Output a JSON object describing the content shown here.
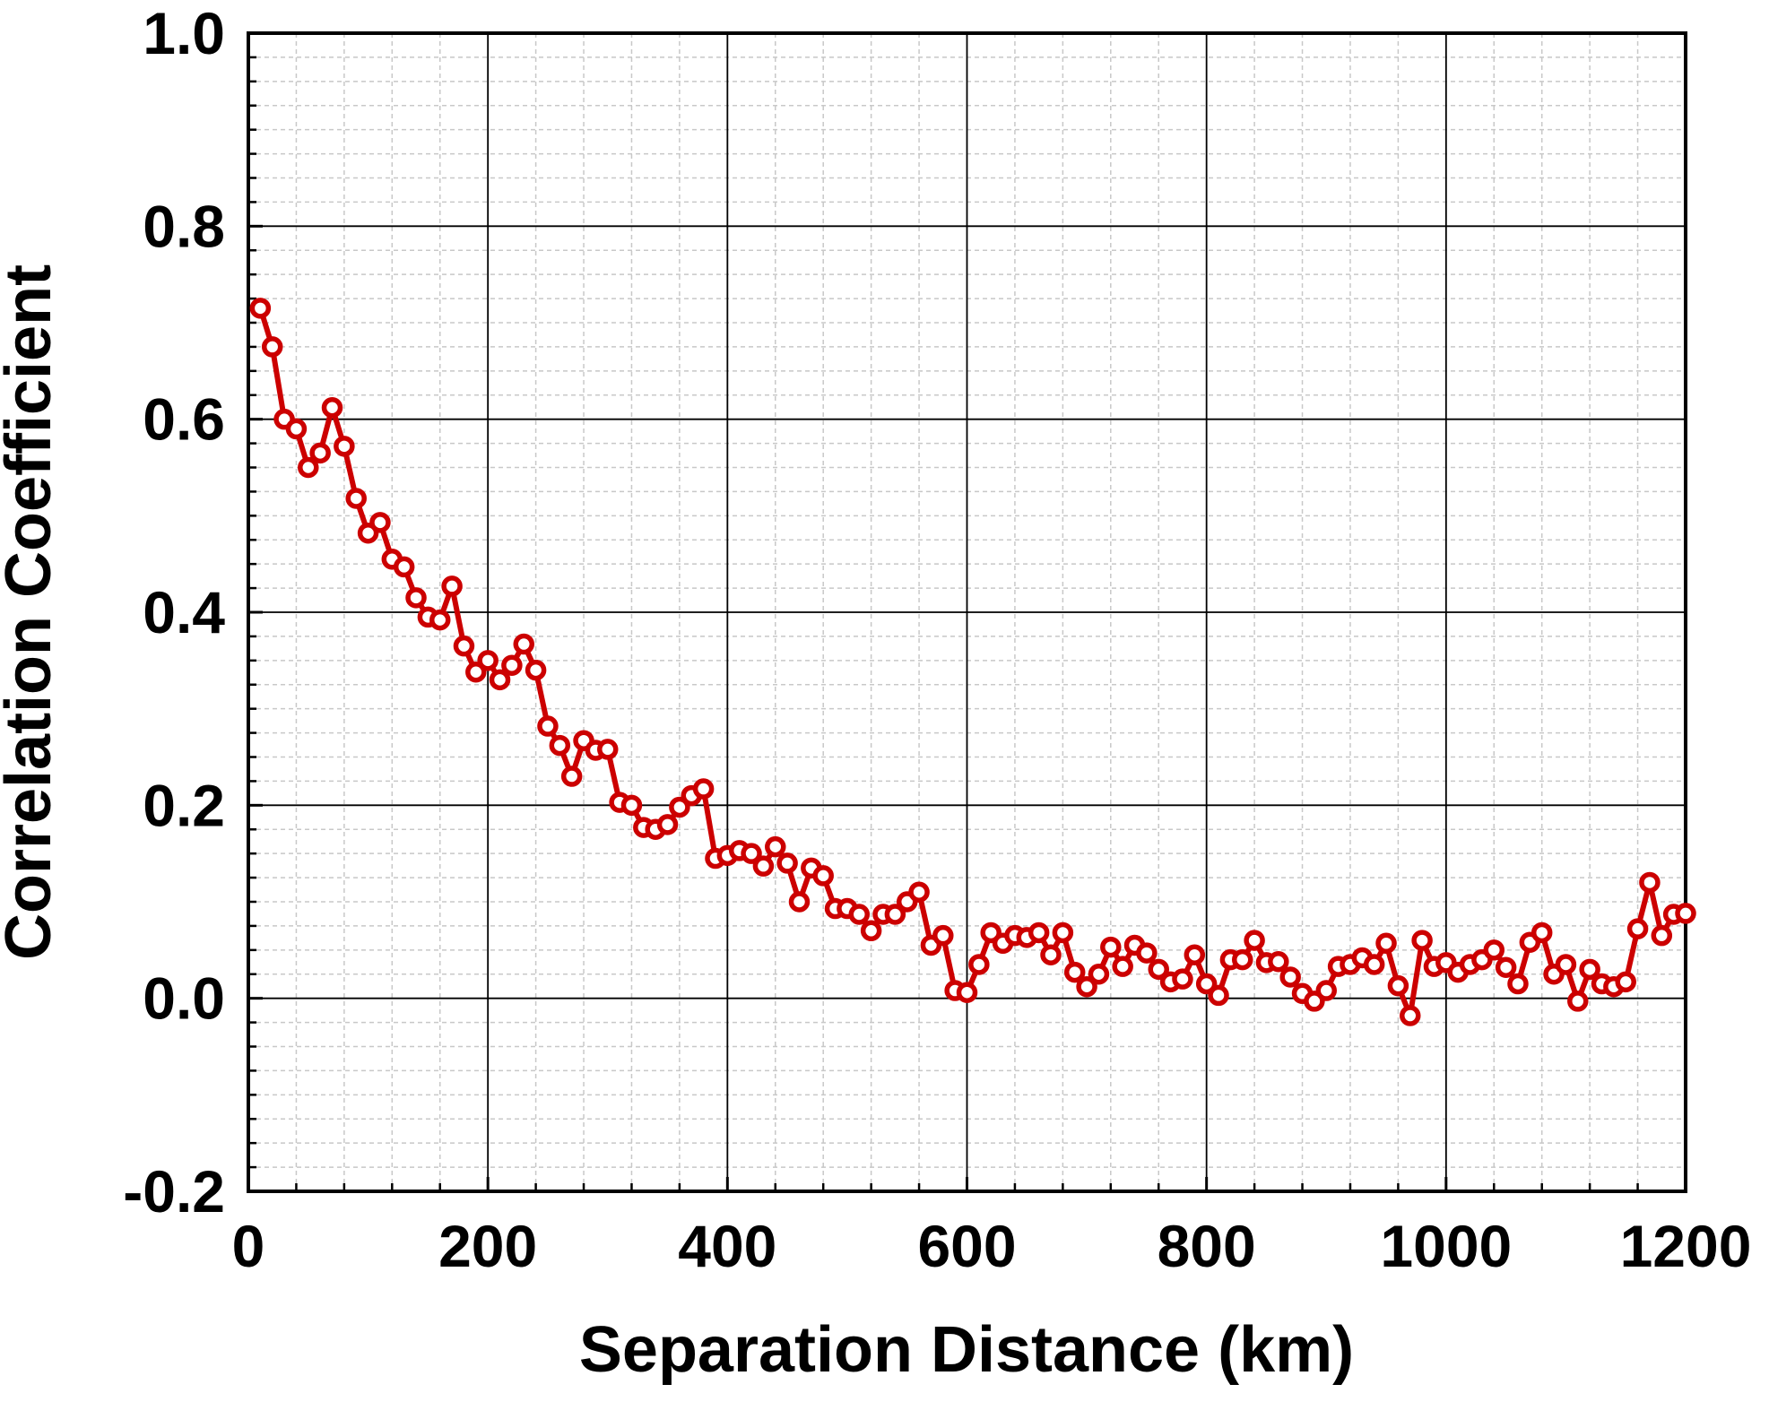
{
  "chart_data": {
    "type": "line",
    "xlabel": "Separation Distance (km)",
    "ylabel": "Correlation Coefficient",
    "xlim": [
      0,
      1200
    ],
    "ylim": [
      -0.2,
      1.0
    ],
    "x_ticks": [
      "0",
      "200",
      "400",
      "600",
      "800",
      "1000",
      "1200"
    ],
    "y_ticks": [
      "-0.2",
      "0.0",
      "0.2",
      "0.4",
      "0.6",
      "0.8",
      "1.0"
    ],
    "grid": true,
    "minor_grid": true,
    "legend": "none",
    "colors": {
      "series": "#cc0000",
      "major_grid": "#000000",
      "minor_grid": "#c8c8c8"
    },
    "series": [
      {
        "x": [
          10,
          20,
          30,
          40,
          50,
          60,
          70,
          80,
          90,
          100,
          110,
          120,
          130,
          140,
          150,
          160,
          170,
          180,
          190,
          200,
          210,
          220,
          230,
          240,
          250,
          260,
          270,
          280,
          290,
          300,
          310,
          320,
          330,
          340,
          350,
          360,
          370,
          380,
          390,
          400,
          410,
          420,
          430,
          440,
          450,
          460,
          470,
          480,
          490,
          500,
          510,
          520,
          530,
          540,
          550,
          560,
          570,
          580,
          590,
          600,
          610,
          620,
          630,
          640,
          650,
          660,
          670,
          680,
          690,
          700,
          710,
          720,
          730,
          740,
          750,
          760,
          770,
          780,
          790,
          800,
          810,
          820,
          830,
          840,
          850,
          860,
          870,
          880,
          890,
          900,
          910,
          920,
          930,
          940,
          950,
          960,
          970,
          980,
          990,
          1000,
          1010,
          1020,
          1030,
          1040,
          1050,
          1060,
          1070,
          1080,
          1090,
          1100,
          1110,
          1120,
          1130,
          1140,
          1150,
          1160,
          1170,
          1180,
          1190,
          1200
        ],
        "y": [
          0.715,
          0.675,
          0.6,
          0.59,
          0.55,
          0.565,
          0.612,
          0.572,
          0.518,
          0.482,
          0.493,
          0.455,
          0.447,
          0.415,
          0.395,
          0.392,
          0.427,
          0.365,
          0.338,
          0.35,
          0.33,
          0.345,
          0.367,
          0.34,
          0.282,
          0.262,
          0.23,
          0.267,
          0.257,
          0.258,
          0.203,
          0.2,
          0.177,
          0.175,
          0.18,
          0.198,
          0.21,
          0.217,
          0.145,
          0.148,
          0.153,
          0.15,
          0.137,
          0.157,
          0.14,
          0.1,
          0.135,
          0.127,
          0.093,
          0.093,
          0.087,
          0.07,
          0.087,
          0.087,
          0.1,
          0.11,
          0.055,
          0.065,
          0.008,
          0.006,
          0.035,
          0.068,
          0.057,
          0.065,
          0.063,
          0.068,
          0.045,
          0.068,
          0.027,
          0.012,
          0.025,
          0.053,
          0.033,
          0.055,
          0.047,
          0.03,
          0.017,
          0.02,
          0.045,
          0.015,
          0.003,
          0.04,
          0.04,
          0.06,
          0.037,
          0.038,
          0.022,
          0.005,
          -0.003,
          0.008,
          0.033,
          0.035,
          0.042,
          0.035,
          0.057,
          0.013,
          -0.018,
          0.06,
          0.033,
          0.037,
          0.027,
          0.035,
          0.04,
          0.05,
          0.032,
          0.015,
          0.058,
          0.068,
          0.025,
          0.035,
          -0.003,
          0.03,
          0.015,
          0.012,
          0.017,
          0.072,
          0.12,
          0.065,
          0.087,
          0.088
        ]
      }
    ]
  }
}
